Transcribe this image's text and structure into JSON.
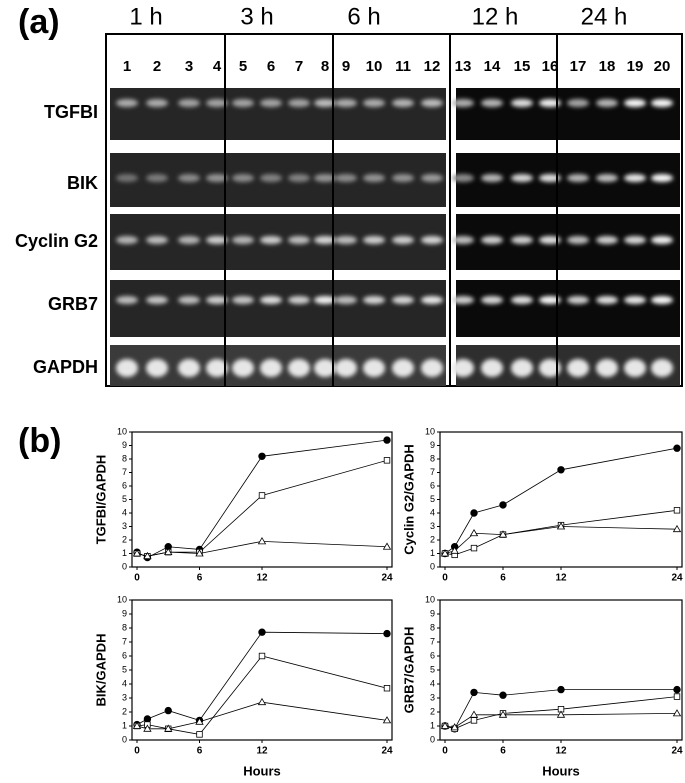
{
  "gel": {
    "panel_label": "(a)",
    "time_labels": [
      "1 h",
      "3 h",
      "6 h",
      "12 h",
      "24 h"
    ],
    "lanes": [
      "1",
      "2",
      "3",
      "4",
      "5",
      "6",
      "7",
      "8",
      "9",
      "10",
      "11",
      "12",
      "13",
      "14",
      "15",
      "16",
      "17",
      "18",
      "19",
      "20"
    ],
    "genes": [
      "TGFBI",
      "BIK",
      "Cyclin G2",
      "GRB7",
      "GAPDH"
    ]
  },
  "panel_b_label": "(b)",
  "chart_data": [
    {
      "type": "line",
      "ylabel": "TGFBI/GAPDH",
      "x": [
        0,
        1,
        3,
        6,
        12,
        24
      ],
      "xlim": [
        0,
        24
      ],
      "ylim": [
        0,
        10
      ],
      "xticks": [
        0,
        6,
        12,
        24
      ],
      "yticks": [
        0,
        1,
        2,
        3,
        4,
        5,
        6,
        7,
        8,
        9,
        10
      ],
      "color": "#000000",
      "series": [
        {
          "marker": "filled-circle",
          "values": [
            1.1,
            0.7,
            1.5,
            1.3,
            8.2,
            9.4
          ]
        },
        {
          "marker": "open-square",
          "values": [
            1.0,
            0.8,
            1.1,
            1.1,
            5.3,
            7.9
          ]
        },
        {
          "marker": "open-triangle",
          "values": [
            1.0,
            0.8,
            1.1,
            1.0,
            1.9,
            1.5
          ]
        }
      ]
    },
    {
      "type": "line",
      "ylabel": "Cyclin G2/GAPDH",
      "x": [
        0,
        1,
        3,
        6,
        12,
        24
      ],
      "xlim": [
        0,
        24
      ],
      "ylim": [
        0,
        10
      ],
      "xticks": [
        0,
        6,
        12,
        24
      ],
      "yticks": [
        0,
        1,
        2,
        3,
        4,
        5,
        6,
        7,
        8,
        9,
        10
      ],
      "color": "#000000",
      "series": [
        {
          "marker": "filled-circle",
          "values": [
            1.0,
            1.5,
            4.0,
            4.6,
            7.2,
            8.8
          ]
        },
        {
          "marker": "open-square",
          "values": [
            1.0,
            0.9,
            1.4,
            2.4,
            3.1,
            4.2
          ]
        },
        {
          "marker": "open-triangle",
          "values": [
            1.0,
            1.2,
            2.5,
            2.4,
            3.0,
            2.8
          ]
        }
      ]
    },
    {
      "type": "line",
      "ylabel": "BIK/GAPDH",
      "xlabel": "Hours",
      "x": [
        0,
        1,
        3,
        6,
        12,
        24
      ],
      "xlim": [
        0,
        24
      ],
      "ylim": [
        0,
        10
      ],
      "xticks": [
        0,
        6,
        12,
        24
      ],
      "yticks": [
        0,
        1,
        2,
        3,
        4,
        5,
        6,
        7,
        8,
        9,
        10
      ],
      "color": "#000000",
      "series": [
        {
          "marker": "filled-circle",
          "values": [
            1.1,
            1.5,
            2.1,
            1.4,
            7.7,
            7.6
          ]
        },
        {
          "marker": "open-square",
          "values": [
            1.0,
            1.1,
            0.8,
            0.4,
            6.0,
            3.7
          ]
        },
        {
          "marker": "open-triangle",
          "values": [
            1.0,
            0.8,
            0.8,
            1.3,
            2.7,
            1.4
          ]
        }
      ]
    },
    {
      "type": "line",
      "ylabel": "GRB7/GAPDH",
      "xlabel": "Hours",
      "x": [
        0,
        1,
        3,
        6,
        12,
        24
      ],
      "xlim": [
        0,
        24
      ],
      "ylim": [
        0,
        10
      ],
      "xticks": [
        0,
        6,
        12,
        24
      ],
      "yticks": [
        0,
        1,
        2,
        3,
        4,
        5,
        6,
        7,
        8,
        9,
        10
      ],
      "color": "#000000",
      "series": [
        {
          "marker": "filled-circle",
          "values": [
            1.0,
            0.8,
            3.4,
            3.2,
            3.6,
            3.6
          ]
        },
        {
          "marker": "open-square",
          "values": [
            1.0,
            0.8,
            1.4,
            1.9,
            2.2,
            3.1
          ]
        },
        {
          "marker": "open-triangle",
          "values": [
            1.0,
            0.9,
            1.8,
            1.8,
            1.8,
            1.9
          ]
        }
      ]
    }
  ]
}
